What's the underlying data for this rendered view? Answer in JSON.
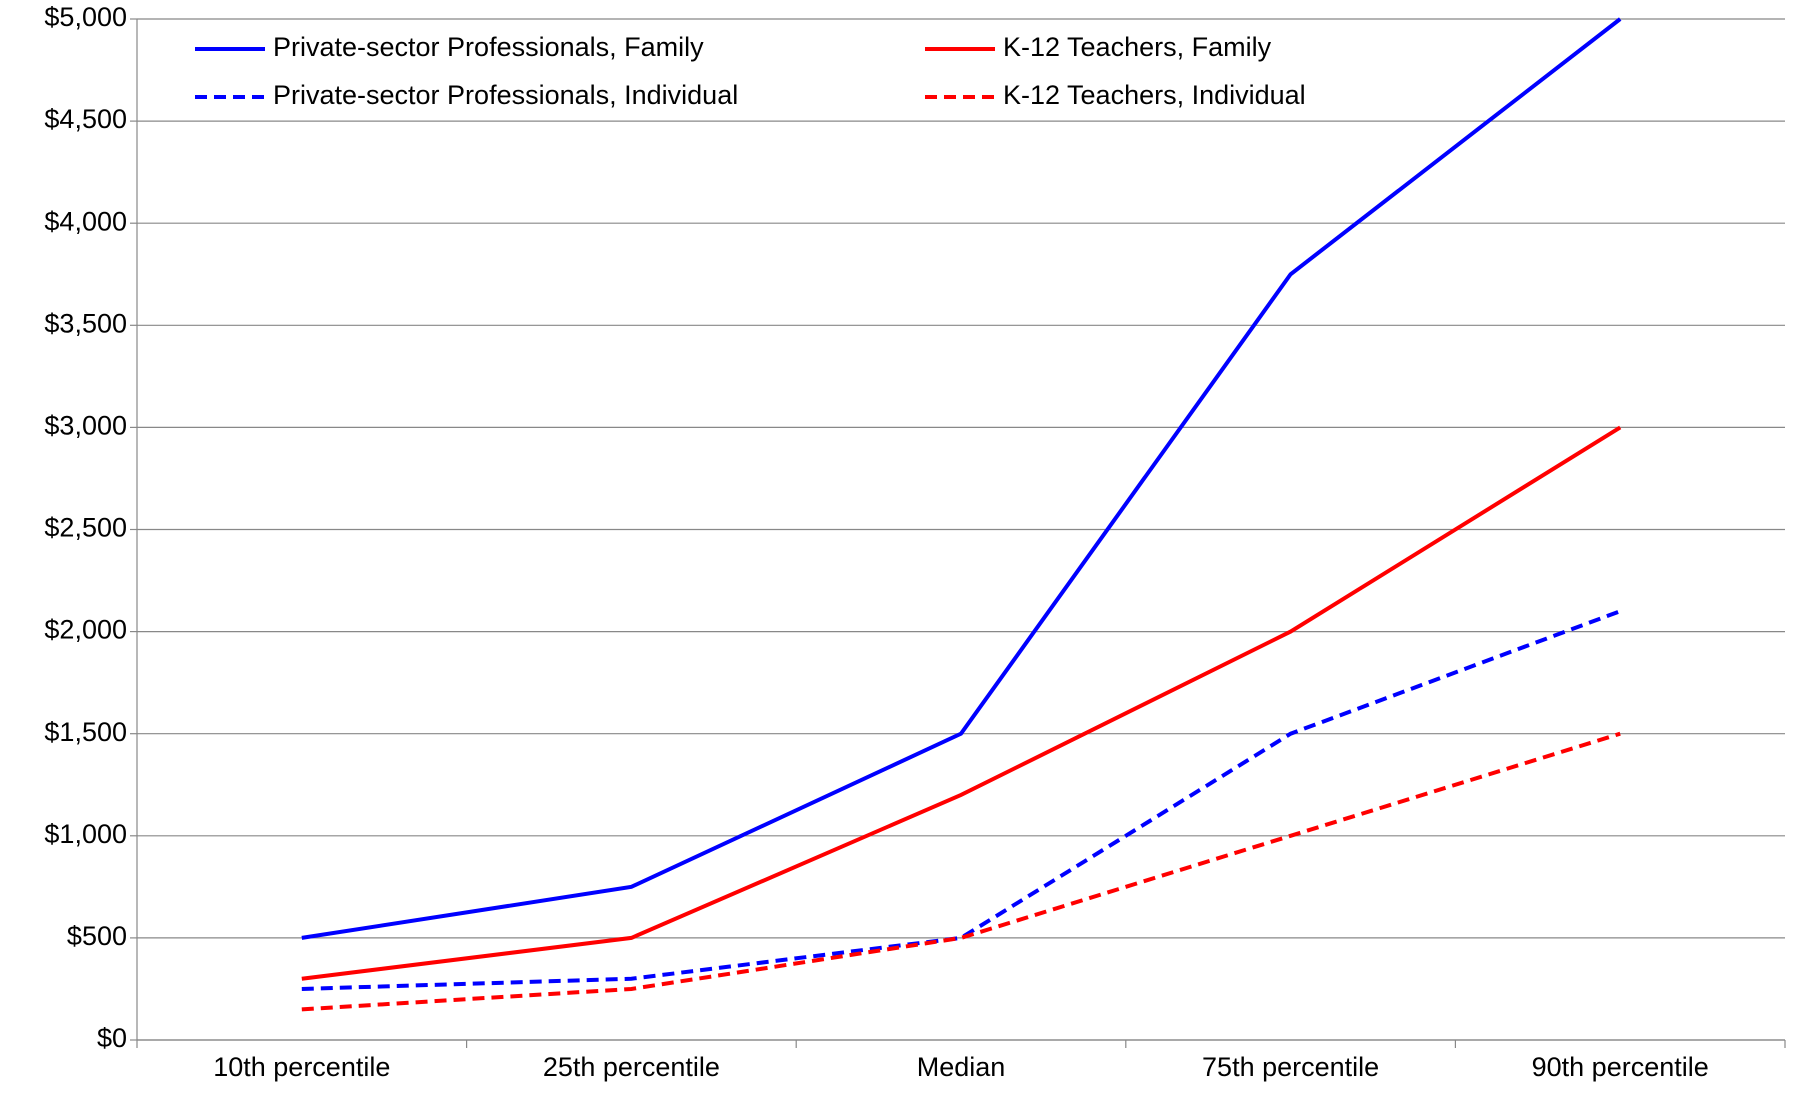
{
  "chart_data": {
    "type": "line",
    "categories": [
      "10th percentile",
      "25th percentile",
      "Median",
      "75th percentile",
      "90th percentile"
    ],
    "series": [
      {
        "name": "Private-sector Professionals, Family",
        "color": "#0000ff",
        "line_style": "solid",
        "values": [
          500,
          750,
          1500,
          3750,
          5000
        ]
      },
      {
        "name": "K-12 Teachers, Family",
        "color": "#ff0000",
        "line_style": "solid",
        "values": [
          300,
          500,
          1200,
          2000,
          3000
        ]
      },
      {
        "name": "Private-sector Professionals, Individual",
        "color": "#0000ff",
        "line_style": "dashed",
        "values": [
          250,
          300,
          500,
          1500,
          2100
        ]
      },
      {
        "name": "K-12 Teachers, Individual",
        "color": "#ff0000",
        "line_style": "dashed",
        "values": [
          150,
          250,
          500,
          1000,
          1500
        ]
      }
    ],
    "ylim": [
      0,
      5000
    ],
    "yticks": [
      {
        "value": 0,
        "label": "$0"
      },
      {
        "value": 500,
        "label": "$500"
      },
      {
        "value": 1000,
        "label": "$1,000"
      },
      {
        "value": 1500,
        "label": "$1,500"
      },
      {
        "value": 2000,
        "label": "$2,000"
      },
      {
        "value": 2500,
        "label": "$2,500"
      },
      {
        "value": 3000,
        "label": "$3,000"
      },
      {
        "value": 3500,
        "label": "$3,500"
      },
      {
        "value": 4000,
        "label": "$4,000"
      },
      {
        "value": 4500,
        "label": "$4,500"
      },
      {
        "value": 5000,
        "label": "$5,000"
      }
    ],
    "grid": true,
    "legend": "top"
  }
}
